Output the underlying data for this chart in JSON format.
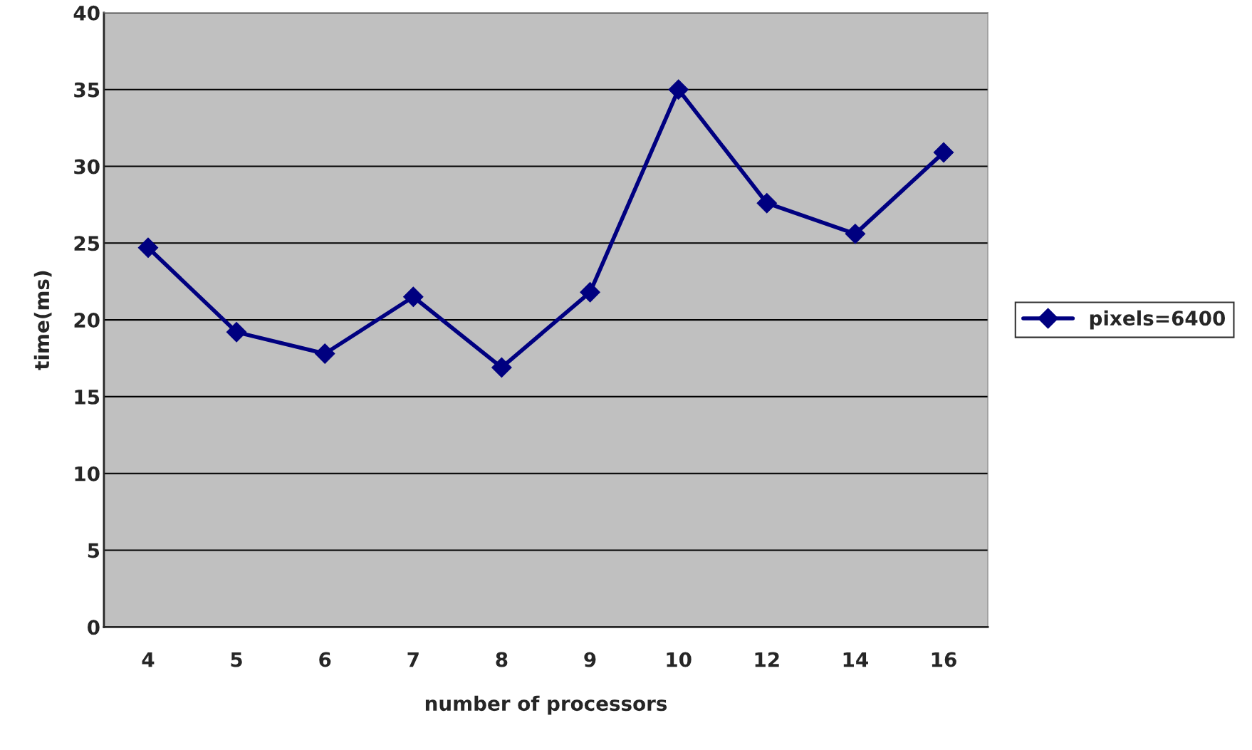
{
  "chart_data": {
    "type": "line",
    "xlabel": "number of processors",
    "ylabel": "time(ms)",
    "categories": [
      "4",
      "5",
      "6",
      "7",
      "8",
      "9",
      "10",
      "12",
      "14",
      "16"
    ],
    "series": [
      {
        "name": "pixels=6400",
        "color": "#000080",
        "values": [
          24.7,
          19.2,
          17.8,
          21.5,
          16.9,
          21.8,
          35.0,
          27.6,
          25.6,
          30.9
        ]
      }
    ],
    "ylim": [
      0,
      40
    ],
    "yticks": [
      0,
      5,
      10,
      15,
      20,
      25,
      30,
      35,
      40
    ],
    "grid": "y",
    "legend": "right",
    "marker": "diamond",
    "line_style": "solid"
  }
}
